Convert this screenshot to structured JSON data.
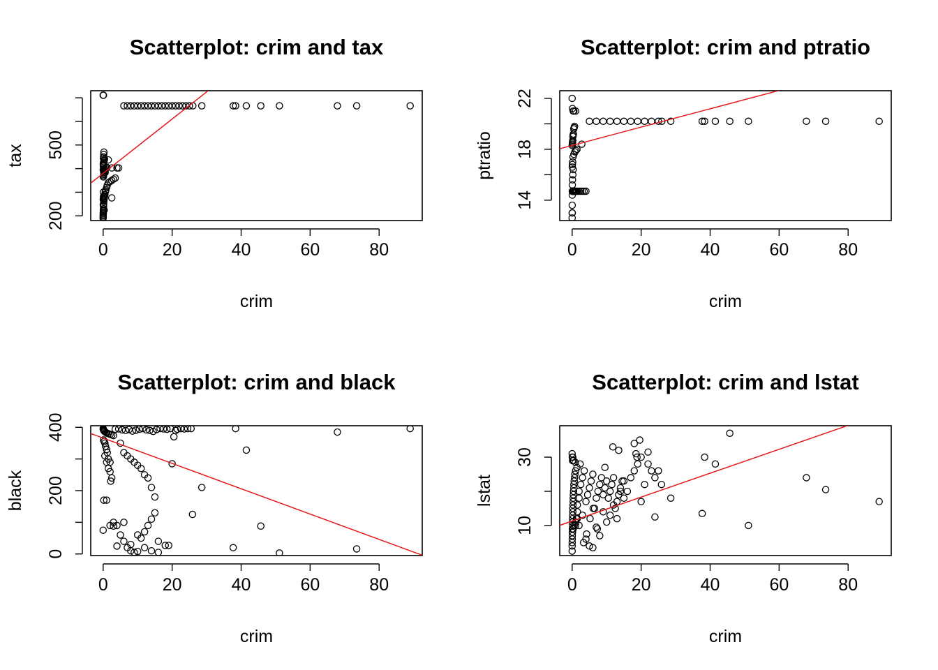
{
  "chart_data": [
    {
      "type": "scatter",
      "title": "Scatterplot: crim and tax",
      "xlabel": "crim",
      "ylabel": "tax",
      "xlim": [
        -3.6,
        92.5
      ],
      "ylim": [
        180,
        730
      ],
      "xticks": [
        0,
        20,
        40,
        60,
        80
      ],
      "yticks": [
        200,
        300,
        400,
        500,
        600,
        700
      ],
      "ytick_labels": [
        "200",
        "",
        "",
        "500",
        "",
        ""
      ],
      "fit_line": {
        "color": "#e41a1c",
        "intercept": 380,
        "slope": 11.5
      },
      "x": [
        0.0,
        0.01,
        0.02,
        0.03,
        0.04,
        0.05,
        0.06,
        0.08,
        0.1,
        0.12,
        0.14,
        0.17,
        0.2,
        0.25,
        0.3,
        0.35,
        0.4,
        0.5,
        0.6,
        0.7,
        0.8,
        1.0,
        1.2,
        1.5,
        2.0,
        2.5,
        3.0,
        3.5,
        0.05,
        0.1,
        0.2,
        0.3,
        0.15,
        0.25,
        0.02,
        0.5,
        0.8,
        1.1,
        0.06,
        0.04,
        0.03,
        0.09,
        0.2,
        0.3,
        0.4,
        0.07,
        0.12,
        0.18,
        0.22,
        0.05,
        0.1,
        2.5,
        4.0,
        0.4,
        0.6,
        0.15,
        0.05,
        0.02,
        0.03,
        1.5,
        0.1,
        0.3,
        2.5,
        4.5,
        6,
        7,
        8,
        9,
        10,
        11,
        12,
        13,
        14,
        15,
        16,
        17,
        18,
        19,
        20,
        21,
        22,
        23,
        24,
        25,
        26,
        28.6,
        37.7,
        38.4,
        41.5,
        45.7,
        51.1,
        67.9,
        73.5,
        89.0,
        0.0,
        0.1
      ],
      "y": [
        190,
        195,
        200,
        205,
        210,
        215,
        220,
        225,
        230,
        240,
        250,
        260,
        265,
        270,
        275,
        280,
        285,
        290,
        300,
        305,
        310,
        320,
        330,
        340,
        345,
        350,
        355,
        360,
        365,
        370,
        375,
        380,
        385,
        390,
        395,
        400,
        403,
        405,
        410,
        415,
        420,
        425,
        430,
        436,
        440,
        445,
        450,
        460,
        470,
        270,
        280,
        403,
        403,
        393,
        384,
        398,
        300,
        270,
        247,
        437,
        281,
        224,
        276,
        403,
        666,
        666,
        666,
        666,
        666,
        666,
        666,
        666,
        666,
        666,
        666,
        666,
        666,
        666,
        666,
        666,
        666,
        666,
        666,
        666,
        666,
        666,
        666,
        666,
        666,
        666,
        666,
        666,
        666,
        666,
        711,
        711
      ]
    },
    {
      "type": "scatter",
      "title": "Scatterplot: crim and ptratio",
      "xlabel": "crim",
      "ylabel": "ptratio",
      "xlim": [
        -3.6,
        92.5
      ],
      "ylim": [
        12.4,
        22.6
      ],
      "xticks": [
        0,
        20,
        40,
        60,
        80
      ],
      "yticks": [
        14,
        16,
        18,
        20,
        22
      ],
      "ytick_labels": [
        "14",
        "",
        "18",
        "",
        "22"
      ],
      "fit_line": {
        "color": "#e41a1c",
        "intercept": 18.3,
        "slope": 0.072
      },
      "x": [
        0.0,
        0.01,
        0.02,
        0.03,
        0.05,
        0.07,
        0.1,
        0.12,
        0.15,
        0.2,
        0.25,
        0.3,
        0.35,
        0.4,
        0.5,
        0.6,
        0.7,
        0.8,
        1.0,
        1.2,
        1.5,
        2.0,
        2.5,
        3.0,
        3.5,
        4.0,
        0.05,
        0.1,
        0.2,
        0.3,
        0.04,
        0.08,
        0.15,
        0.25,
        0.5,
        0.8,
        1.1,
        1.4,
        0.02,
        0.06,
        0.09,
        0.12,
        0.18,
        0.22,
        0.28,
        0.35,
        0.45,
        0.6,
        0.7,
        2.8,
        0.3,
        0.5,
        1.0,
        5,
        7,
        9,
        11,
        13,
        15,
        17,
        19,
        21,
        23,
        25,
        26,
        28.6,
        37.7,
        38.4,
        41.5,
        45.7,
        51.1,
        67.9,
        73.5,
        89.0,
        0.0,
        0.1,
        0.05
      ],
      "y": [
        12.6,
        13.0,
        13.6,
        14.4,
        14.7,
        14.7,
        14.7,
        14.7,
        14.7,
        14.7,
        14.7,
        14.7,
        14.7,
        14.7,
        14.7,
        14.7,
        14.7,
        14.7,
        14.7,
        14.7,
        14.7,
        14.7,
        14.7,
        14.7,
        14.7,
        14.7,
        15.2,
        15.6,
        16.0,
        16.4,
        16.6,
        16.8,
        17.0,
        17.4,
        17.6,
        17.8,
        17.9,
        18.0,
        18.3,
        18.4,
        18.5,
        18.6,
        18.7,
        19.0,
        19.1,
        19.2,
        19.6,
        19.7,
        19.8,
        18.4,
        21.0,
        21.0,
        21.0,
        20.2,
        20.2,
        20.2,
        20.2,
        20.2,
        20.2,
        20.2,
        20.2,
        20.2,
        20.2,
        20.2,
        20.2,
        20.2,
        20.2,
        20.2,
        20.2,
        20.2,
        20.2,
        20.2,
        20.2,
        20.2,
        22.0,
        21.2,
        13.0
      ]
    },
    {
      "type": "scatter",
      "title": "Scatterplot: crim and black",
      "xlabel": "crim",
      "ylabel": "black",
      "xlim": [
        -3.6,
        92.5
      ],
      "ylim": [
        -5,
        405
      ],
      "xticks": [
        0,
        20,
        40,
        60,
        80
      ],
      "yticks": [
        0,
        100,
        200,
        300,
        400
      ],
      "ytick_labels": [
        "0",
        "",
        "200",
        "",
        "400"
      ],
      "fit_line": {
        "color": "#e41a1c",
        "intercept": 366,
        "slope": -4.0
      },
      "x": [
        0.0,
        0.05,
        0.1,
        0.2,
        0.3,
        0.5,
        0.8,
        1.0,
        1.5,
        2.0,
        2.5,
        3.0,
        0.1,
        0.3,
        0.5,
        0.7,
        1.0,
        1.2,
        1.5,
        2.0,
        0.5,
        1.0,
        1.5,
        2.0,
        2.5,
        2.2,
        3.5,
        4.5,
        5.5,
        6.5,
        7.5,
        8.5,
        9.5,
        10.5,
        11.5,
        12.5,
        13.5,
        14.5,
        15.5,
        16.5,
        17.5,
        18.5,
        19.5,
        20.5,
        21.5,
        22.5,
        23.5,
        24.5,
        25.5,
        5.0,
        6.0,
        7.0,
        8.0,
        9.0,
        10.0,
        11.0,
        12.0,
        13.0,
        14.0,
        15.0,
        3.0,
        4.0,
        5.0,
        6.0,
        7.0,
        8.0,
        9.0,
        10.0,
        11.0,
        12.0,
        13.0,
        14.0,
        15.0,
        16.0,
        18.0,
        19.0,
        20.0,
        21.0,
        25.9,
        28.6,
        37.7,
        38.4,
        41.5,
        45.7,
        51.1,
        67.9,
        73.5,
        89.0,
        0.0,
        4.0,
        6.0,
        8.0,
        10.0,
        12.0,
        14.0,
        16.0,
        0.2,
        1.0,
        2.0,
        3.0
      ],
      "y": [
        396,
        394,
        392,
        390,
        388,
        386,
        384,
        382,
        380,
        378,
        376,
        374,
        360,
        355,
        350,
        340,
        330,
        320,
        300,
        290,
        310,
        290,
        270,
        260,
        240,
        230,
        394,
        395,
        392,
        390,
        393,
        388,
        391,
        394,
        396,
        392,
        390,
        387,
        393,
        396,
        395,
        394,
        396,
        370,
        394,
        396,
        395,
        396,
        396,
        350,
        320,
        310,
        300,
        290,
        280,
        270,
        250,
        240,
        210,
        180,
        100,
        90,
        60,
        40,
        20,
        10,
        5,
        8,
        50,
        70,
        90,
        110,
        130,
        40,
        27,
        27,
        285,
        390,
        125,
        210,
        20,
        396,
        328,
        88,
        3,
        385,
        16,
        396,
        75,
        25,
        100,
        30,
        60,
        20,
        10,
        5,
        170,
        170,
        90,
        88
      ]
    },
    {
      "type": "scatter",
      "title": "Scatterplot: crim and lstat",
      "xlabel": "crim",
      "ylabel": "lstat",
      "xlim": [
        -3.6,
        92.5
      ],
      "ylim": [
        1.2,
        39.2
      ],
      "xticks": [
        0,
        20,
        40,
        60,
        80
      ],
      "yticks": [
        10,
        20,
        30
      ],
      "ytick_labels": [
        "10",
        "",
        "30"
      ],
      "fit_line": {
        "color": "#e41a1c",
        "intercept": 11.3,
        "slope": 0.35
      },
      "x": [
        0.0,
        0.0,
        0.02,
        0.03,
        0.05,
        0.05,
        0.08,
        0.1,
        0.1,
        0.12,
        0.15,
        0.2,
        0.2,
        0.25,
        0.3,
        0.3,
        0.35,
        0.4,
        0.5,
        0.5,
        0.6,
        0.7,
        0.8,
        1.0,
        1.0,
        1.2,
        1.5,
        1.5,
        2.0,
        2.0,
        2.5,
        3.0,
        3.5,
        4.0,
        4.5,
        5.0,
        5.5,
        6.0,
        6.5,
        7.0,
        7.5,
        8.0,
        8.5,
        9.0,
        9.5,
        10.0,
        10.5,
        11.0,
        11.5,
        12.0,
        12.5,
        13.0,
        13.5,
        14.0,
        14.5,
        15.0,
        16.0,
        17.0,
        18.0,
        19.0,
        20.0,
        21.0,
        22.0,
        23.0,
        24.0,
        25.0,
        0.1,
        0.3,
        0.6,
        1.0,
        1.5,
        2.0,
        3.0,
        4.0,
        5.0,
        6.0,
        7.0,
        8.0,
        9.0,
        10.0,
        11.0,
        12.0,
        13.0,
        14.0,
        15.0,
        18.0,
        18.5,
        20.0,
        22.0,
        0.2,
        0.4,
        0.9,
        1.4,
        2.3,
        3.3,
        4.2,
        5.2,
        6.1,
        7.3,
        9.5,
        11.8,
        13.5,
        18.8,
        19.6,
        24.0,
        25.9,
        28.6,
        37.7,
        38.4,
        41.5,
        45.7,
        51.1,
        67.9,
        73.5,
        89.0,
        0.0,
        0.1,
        0.05
      ],
      "y": [
        2.5,
        4.0,
        5.0,
        6.0,
        7.0,
        8.0,
        9.0,
        10.0,
        11.0,
        12.0,
        13.0,
        14.0,
        15.0,
        16.0,
        17.0,
        18.0,
        19.0,
        20.0,
        21.0,
        22.0,
        23.0,
        24.0,
        25.0,
        26.0,
        10.0,
        12.0,
        14.0,
        16.0,
        18.0,
        20.0,
        22.0,
        24.0,
        26.0,
        17.0,
        19.0,
        21.0,
        23.0,
        25.0,
        15.0,
        18.0,
        20.0,
        22.0,
        24.0,
        19.0,
        21.0,
        23.0,
        18.0,
        20.0,
        22.0,
        24.0,
        15.0,
        17.0,
        19.0,
        21.0,
        23.0,
        18.0,
        20.0,
        24.0,
        26.0,
        28.0,
        17.0,
        22.0,
        28.0,
        26.0,
        24.0,
        26.0,
        8.0,
        9.0,
        10.0,
        11.0,
        12.0,
        10.0,
        13.0,
        6.0,
        4.0,
        3.5,
        9.5,
        7.0,
        14.0,
        11.0,
        13.0,
        16.0,
        12.0,
        20.0,
        23.0,
        34.0,
        31.0,
        30.0,
        31.5,
        30.0,
        29.0,
        28.5,
        27.0,
        28.0,
        5.0,
        7.5,
        12.0,
        15.0,
        9.0,
        27.0,
        33.0,
        32.0,
        30.0,
        35.0,
        12.5,
        22.0,
        18.0,
        13.5,
        30.0,
        28.0,
        37.0,
        10.0,
        24.0,
        20.5,
        17.0,
        31.0,
        29.0,
        30.0
      ]
    }
  ]
}
